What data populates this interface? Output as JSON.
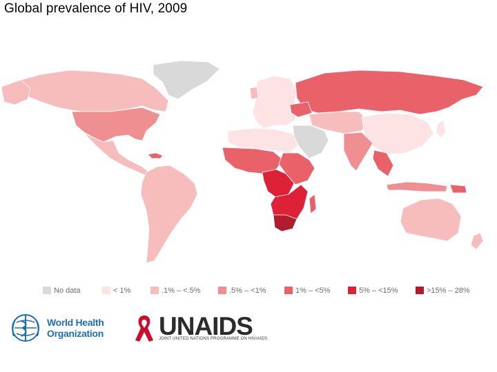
{
  "title": "Global prevalence of HIV, 2009",
  "legend": [
    {
      "label": "No data",
      "color": "#d9d9d9"
    },
    {
      "label": "< 1%",
      "color": "#fde3e3"
    },
    {
      "label": ".1% – <.5%",
      "color": "#f7bcbc"
    },
    {
      "label": ".5% – <1%",
      "color": "#f08f92"
    },
    {
      "label": "1% – <5%",
      "color": "#e9626a"
    },
    {
      "label": "5% – <15%",
      "color": "#dd2238"
    },
    {
      "label": ">15% – 28%",
      "color": "#b01c2e"
    }
  ],
  "logos": {
    "who_line1": "World Health",
    "who_line2": "Organization",
    "unaids_word": "UNAIDS",
    "unaids_tagline": "JOINT UNITED NATIONS PROGRAMME ON HIV/AIDS"
  }
}
